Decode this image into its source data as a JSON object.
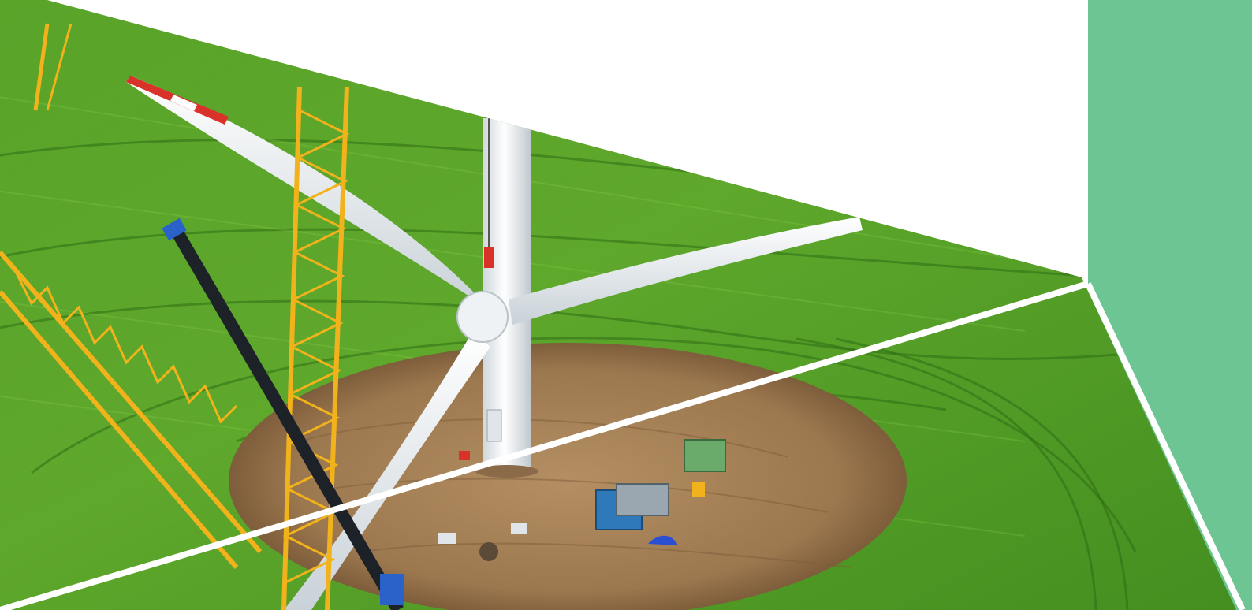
{
  "image": {
    "subject": "wind-turbine-construction-site",
    "colors": {
      "accent_panel": "#6cc592",
      "field_dark": "#3f8a1f",
      "field_mid": "#5ea82a",
      "field_light": "#86c23c",
      "soil": "#a98358",
      "soil_dark": "#7e5d3b",
      "tower": "#eef1f3",
      "blade": "#e6ebee",
      "blade_tip_red": "#d8322a",
      "crane_yellow": "#f2b21b",
      "crane_boom_dark": "#1d2228",
      "divider": "#ffffff"
    }
  }
}
